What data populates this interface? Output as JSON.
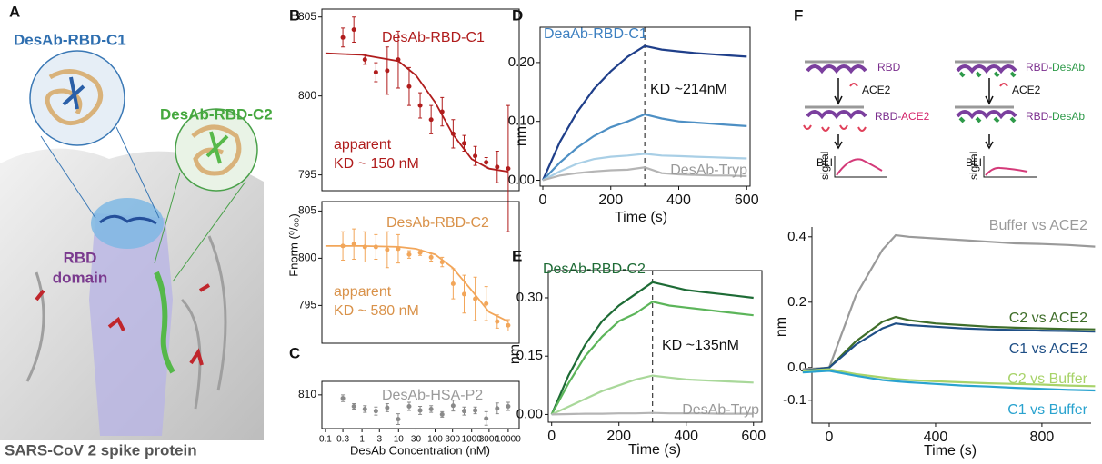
{
  "panel_labels": [
    "A",
    "B",
    "C",
    "D",
    "E",
    "F"
  ],
  "panel_a": {
    "c1": "DesAb-RBD-C1",
    "c2": "DesAb-RBD-C2",
    "rbd": [
      "RBD",
      "domain"
    ],
    "caption": "SARS-CoV 2 spike protein"
  },
  "panel_f_diagram": {
    "left": {
      "top": [
        "RBD"
      ],
      "ligand": "ACE2",
      "bottom": [
        "RBD-",
        "ACE2"
      ],
      "axis": [
        "BLI",
        "signal"
      ]
    },
    "right": {
      "top": [
        "RBD-",
        "DesAb"
      ],
      "ligand": "ACE2",
      "bottom": [
        "RBD-",
        "DesAb"
      ],
      "axis": [
        "BLI",
        "signal"
      ]
    }
  },
  "chart_data": [
    {
      "type": "scatter",
      "xlog": true,
      "color": "#b01c1c",
      "x": [
        0.3,
        0.6,
        1.2,
        2.4,
        4.9,
        9.8,
        19.5,
        39,
        78,
        156,
        312,
        625,
        1250,
        2500,
        5000,
        10000
      ],
      "values": [
        803.7,
        804.2,
        802.3,
        801.5,
        801.6,
        802.3,
        800.6,
        799.4,
        798.5,
        799.0,
        797.6,
        797.0,
        796.2,
        795.8,
        795.5,
        795.4
      ],
      "errors": [
        0.6,
        0.8,
        0.3,
        0.6,
        1.5,
        1.8,
        1.2,
        0.8,
        0.9,
        0.9,
        0.9,
        0.5,
        0.6,
        0.3,
        1.0,
        4.0
      ],
      "fit": {
        "x": [
          0.1,
          1,
          10,
          30,
          100,
          300,
          1000,
          3000,
          10000
        ],
        "values": [
          802.7,
          802.6,
          802.2,
          801.3,
          799.6,
          797.6,
          796.0,
          795.4,
          795.2
        ]
      },
      "xlim": [
        0.08,
        20000
      ],
      "ylim": [
        794,
        805.5
      ],
      "yticks": [
        795,
        800,
        805
      ],
      "annotations": [
        {
          "text": "DesAb-RBD-C1",
          "color": "#b01c1c"
        },
        {
          "text": "apparent",
          "color": "#b01c1c"
        },
        {
          "text": "KD ~ 150 nM",
          "color": "#b01c1c"
        }
      ]
    },
    {
      "type": "scatter",
      "xlog": true,
      "color": "#f2a65a",
      "x": [
        0.3,
        0.6,
        1.2,
        2.4,
        4.9,
        9.8,
        19.5,
        39,
        78,
        156,
        312,
        625,
        1250,
        2500,
        5000,
        10000
      ],
      "values": [
        801.3,
        801.5,
        801.2,
        801.2,
        800.9,
        801.0,
        800.4,
        800.6,
        800.1,
        799.6,
        797.3,
        796.2,
        795.7,
        795.2,
        793.3,
        792.9
      ],
      "errors": [
        1.5,
        1.6,
        1.6,
        1.3,
        1.9,
        1.5,
        0.4,
        0.3,
        0.4,
        0.5,
        1.6,
        2.0,
        2.3,
        1.8,
        0.7,
        0.6
      ],
      "fit": {
        "x": [
          0.1,
          1,
          10,
          30,
          100,
          300,
          1000,
          3000,
          10000
        ],
        "values": [
          801.3,
          801.3,
          801.2,
          801.0,
          800.4,
          799.0,
          796.6,
          794.3,
          793.3
        ]
      },
      "xlim": [
        0.08,
        20000
      ],
      "ylim": [
        791,
        806
      ],
      "yticks": [
        795,
        800,
        805
      ],
      "ylabel": "Fnorm (⁰/₀₀)",
      "annotations": [
        {
          "text": "DesAb-RBD-C2",
          "color": "#d9924a"
        },
        {
          "text": "apparent",
          "color": "#d9924a"
        },
        {
          "text": "KD ~ 580 nM",
          "color": "#d9924a"
        }
      ]
    },
    {
      "type": "scatter",
      "xlog": true,
      "color": "#8a8a8a",
      "x": [
        0.3,
        0.6,
        1.2,
        2.4,
        4.9,
        9.8,
        19.5,
        39,
        78,
        156,
        312,
        625,
        1250,
        2500,
        5000,
        10000
      ],
      "values": [
        809.5,
        808.3,
        807.9,
        807.6,
        808.1,
        806.4,
        808.3,
        807.7,
        807.9,
        807.1,
        808.4,
        807.6,
        807.7,
        806.5,
        808.0,
        808.3
      ],
      "errors": [
        0.5,
        0.4,
        0.5,
        0.6,
        0.6,
        0.8,
        0.6,
        0.6,
        0.5,
        0.4,
        0.8,
        0.6,
        0.5,
        1.0,
        0.8,
        0.6
      ],
      "xlim": [
        0.08,
        20000
      ],
      "ylim": [
        805,
        812
      ],
      "yticks": [
        810
      ],
      "xticks": [
        0.1,
        0.3,
        1,
        3,
        10,
        30,
        100,
        300,
        1000,
        3000,
        10000
      ],
      "xlabel": "DesAb Concentration (nM)",
      "annotations": [
        {
          "text": "DesAb-HSA-P2",
          "color": "#9a9a9a"
        }
      ]
    },
    {
      "type": "line",
      "x": [
        0,
        50,
        100,
        150,
        200,
        250,
        300,
        350,
        400,
        450,
        500,
        550,
        600
      ],
      "series": [
        {
          "color": "#1f3f8a",
          "values": [
            0,
            0.065,
            0.115,
            0.155,
            0.185,
            0.21,
            0.228,
            0.222,
            0.219,
            0.216,
            0.214,
            0.212,
            0.21
          ]
        },
        {
          "color": "#4d8fc4",
          "values": [
            0,
            0.03,
            0.055,
            0.075,
            0.09,
            0.1,
            0.112,
            0.105,
            0.1,
            0.098,
            0.096,
            0.094,
            0.092
          ]
        },
        {
          "color": "#a9cfe6",
          "values": [
            0,
            0.015,
            0.028,
            0.036,
            0.04,
            0.042,
            0.045,
            0.042,
            0.041,
            0.04,
            0.039,
            0.038,
            0.037
          ]
        },
        {
          "color": "#b5b5b5",
          "values": [
            0,
            0.008,
            0.012,
            0.015,
            0.017,
            0.018,
            0.022,
            0.012,
            0.01,
            0.009,
            0.008,
            0.008,
            0.007
          ]
        }
      ],
      "vline": 300,
      "xlim": [
        -8,
        610
      ],
      "ylim": [
        -0.01,
        0.26
      ],
      "xticks": [
        0,
        200,
        400,
        600
      ],
      "yticks": [
        {
          "value": 0,
          "label": "0.00"
        },
        {
          "value": 0.1,
          "label": "0.10"
        },
        {
          "value": 0.2,
          "label": "0.20"
        }
      ],
      "xlabel": "Time (s)",
      "ylabel": "nm",
      "annotations": [
        {
          "text": "DeaAb-RBD-C1",
          "color": "#3c7fc0"
        },
        {
          "text": "KD ~214nM",
          "color": "#111111"
        },
        {
          "text": "DesAb-Tryp",
          "color": "#9a9a9a"
        }
      ]
    },
    {
      "type": "line",
      "x": [
        0,
        50,
        100,
        150,
        200,
        250,
        300,
        350,
        400,
        450,
        500,
        550,
        600
      ],
      "series": [
        {
          "color": "#1d6b35",
          "values": [
            0,
            0.1,
            0.18,
            0.24,
            0.28,
            0.31,
            0.34,
            0.33,
            0.32,
            0.315,
            0.31,
            0.305,
            0.3
          ]
        },
        {
          "color": "#5cb55a",
          "values": [
            0,
            0.08,
            0.15,
            0.2,
            0.24,
            0.26,
            0.29,
            0.28,
            0.275,
            0.27,
            0.265,
            0.26,
            0.255
          ]
        },
        {
          "color": "#a9d89a",
          "values": [
            0,
            0.02,
            0.04,
            0.06,
            0.075,
            0.09,
            0.1,
            0.095,
            0.09,
            0.088,
            0.086,
            0.084,
            0.082
          ]
        },
        {
          "color": "#b5b5b5",
          "values": [
            0,
            0.001,
            0.002,
            0.002,
            0.003,
            0.003,
            0.004,
            0.003,
            0.003,
            0.003,
            0.002,
            0.002,
            0.002
          ]
        }
      ],
      "vline": 300,
      "xlim": [
        -10,
        625
      ],
      "ylim": [
        -0.02,
        0.37
      ],
      "xticks": [
        0,
        200,
        400,
        600
      ],
      "yticks": [
        {
          "value": 0,
          "label": "0.00"
        },
        {
          "value": 0.15,
          "label": "0.15"
        },
        {
          "value": 0.3,
          "label": "0.30"
        }
      ],
      "xlabel": "Time (s)",
      "ylabel": "nm",
      "annotations": [
        {
          "text": "DesAb-RBD-C2",
          "color": "#1d6b35"
        },
        {
          "text": "KD ~135nM",
          "color": "#111111"
        },
        {
          "text": "DesAb-Tryp",
          "color": "#9a9a9a"
        }
      ]
    },
    {
      "type": "line",
      "x": [
        -100,
        0,
        100,
        200,
        250,
        300,
        400,
        500,
        600,
        700,
        800,
        900,
        1000
      ],
      "series": [
        {
          "name": "Buffer vs ACE2",
          "color": "#9a9a9a",
          "values": [
            -0.005,
            0,
            0.22,
            0.36,
            0.405,
            0.4,
            0.395,
            0.39,
            0.385,
            0.38,
            0.378,
            0.375,
            0.37
          ]
        },
        {
          "name": "C2 vs ACE2",
          "color": "#3f6e2a",
          "values": [
            -0.01,
            0,
            0.08,
            0.14,
            0.155,
            0.145,
            0.135,
            0.13,
            0.125,
            0.122,
            0.12,
            0.118,
            0.117
          ]
        },
        {
          "name": "C1 vs ACE2",
          "color": "#1f4f86",
          "values": [
            -0.01,
            0,
            0.07,
            0.12,
            0.135,
            0.13,
            0.125,
            0.12,
            0.117,
            0.115,
            0.113,
            0.112,
            0.11
          ]
        },
        {
          "name": "C2 vs Buffer",
          "color": "#a8d36a",
          "values": [
            -0.01,
            -0.005,
            -0.02,
            -0.03,
            -0.035,
            -0.038,
            -0.042,
            -0.045,
            -0.048,
            -0.05,
            -0.052,
            -0.055,
            -0.057
          ]
        },
        {
          "name": "C1 vs Buffer",
          "color": "#2aa3cf",
          "values": [
            -0.015,
            -0.01,
            -0.025,
            -0.038,
            -0.042,
            -0.045,
            -0.05,
            -0.055,
            -0.058,
            -0.062,
            -0.065,
            -0.068,
            -0.07
          ]
        }
      ],
      "xlim": [
        -65,
        985
      ],
      "ylim": [
        -0.17,
        0.43
      ],
      "xticks": [
        0,
        400,
        800
      ],
      "yticks": [
        {
          "value": -0.1,
          "label": "-0.1"
        },
        {
          "value": 0,
          "label": "0.0"
        },
        {
          "value": 0.2,
          "label": "0.2"
        },
        {
          "value": 0.4,
          "label": "0.4"
        }
      ],
      "xlabel": "Time (s)",
      "ylabel": "nm"
    }
  ]
}
